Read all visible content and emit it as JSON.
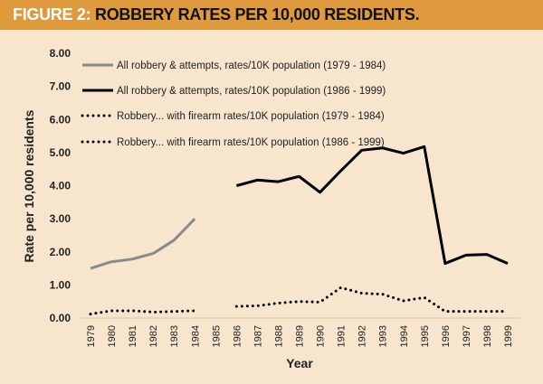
{
  "header": {
    "figure_label": "FIGURE 2:",
    "title": "ROBBERY RATES PER 10,000 RESIDENTS."
  },
  "colors": {
    "header_bg": "#df9a3e",
    "background": "#f7e6cd",
    "gray_series": "#8a8a8a",
    "black_series": "#000000"
  },
  "chart_data": {
    "type": "line",
    "title": "ROBBERY RATES PER 10,000 RESIDENTS.",
    "xlabel": "Year",
    "ylabel": "Rate per 10,000 residents",
    "ylim": [
      0,
      8
    ],
    "yticks": [
      "0.00",
      "1.00",
      "2.00",
      "3.00",
      "4.00",
      "5.00",
      "6.00",
      "7.00",
      "8.00"
    ],
    "categories": [
      "1979",
      "1980",
      "1981",
      "1982",
      "1983",
      "1984",
      "1985",
      "1986",
      "1987",
      "1988",
      "1989",
      "1990",
      "1991",
      "1992",
      "1993",
      "1994",
      "1995",
      "1996",
      "1997",
      "1998",
      "1999"
    ],
    "grid": false,
    "legend_position": "top-left",
    "series": [
      {
        "name": "All robbery & attempts, rates/10K population (1979 - 1984)",
        "style": "solid-gray",
        "values": [
          1.5,
          1.7,
          1.78,
          1.95,
          2.35,
          3.0,
          null,
          null,
          null,
          null,
          null,
          null,
          null,
          null,
          null,
          null,
          null,
          null,
          null,
          null,
          null
        ]
      },
      {
        "name": "All robbery & attempts,  rates/10K population (1986 - 1999)",
        "style": "solid-black",
        "values": [
          null,
          null,
          null,
          null,
          null,
          null,
          null,
          4.0,
          4.17,
          4.12,
          4.28,
          3.8,
          4.45,
          5.07,
          5.14,
          4.98,
          5.18,
          1.65,
          1.9,
          1.92,
          1.65
        ]
      },
      {
        "name": "Robbery... with firearm rates/10K population (1979 - 1984)",
        "style": "dotted",
        "values": [
          0.12,
          0.22,
          0.22,
          0.18,
          0.2,
          0.22,
          null,
          null,
          null,
          null,
          null,
          null,
          null,
          null,
          null,
          null,
          null,
          null,
          null,
          null,
          null
        ]
      },
      {
        "name": "Robbery... with firearm rates/10K population (1986 - 1999)",
        "style": "dotted",
        "values": [
          null,
          null,
          null,
          null,
          null,
          null,
          null,
          0.35,
          0.37,
          0.45,
          0.5,
          0.48,
          0.92,
          0.75,
          0.72,
          0.52,
          0.62,
          0.2,
          0.2,
          0.2,
          0.2
        ]
      }
    ]
  }
}
